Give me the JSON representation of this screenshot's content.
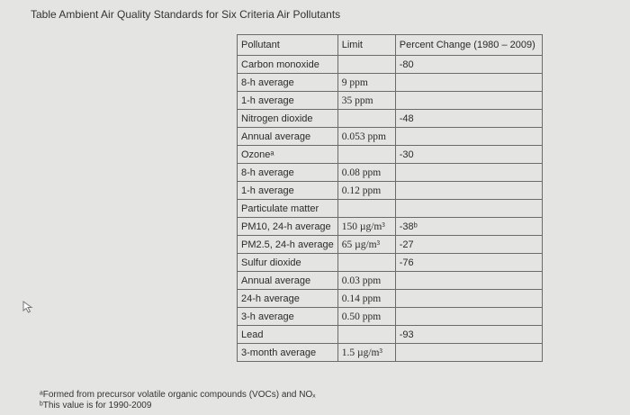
{
  "title": "Table Ambient Air Quality Standards for Six Criteria Air Pollutants",
  "table": {
    "header": [
      "Pollutant",
      "Limit",
      "Percent Change (1980 – 2009)"
    ],
    "rows": [
      [
        "Carbon monoxide",
        "",
        "-80"
      ],
      [
        "8-h average",
        "9 ppm",
        ""
      ],
      [
        "1-h average",
        "35 ppm",
        ""
      ],
      [
        "Nitrogen dioxide",
        "",
        "-48"
      ],
      [
        "Annual average",
        "0.053 ppm",
        ""
      ],
      [
        "Ozoneᵃ",
        "",
        "-30"
      ],
      [
        "8-h average",
        "0.08 ppm",
        ""
      ],
      [
        "1-h average",
        "0.12 ppm",
        ""
      ],
      [
        "Particulate matter",
        "",
        ""
      ],
      [
        "PM10, 24-h average",
        "150 µg/m³",
        "-38ᵇ"
      ],
      [
        "PM2.5, 24-h average",
        "65 µg/m³",
        "-27"
      ],
      [
        "Sulfur dioxide",
        "",
        "-76"
      ],
      [
        "Annual average",
        "0.03 ppm",
        ""
      ],
      [
        "24-h average",
        "0.14 ppm",
        ""
      ],
      [
        "3-h average",
        "0.50 ppm",
        ""
      ],
      [
        "Lead",
        "",
        "-93"
      ],
      [
        "3-month average",
        "1.5 µg/m³",
        ""
      ]
    ]
  },
  "footnotes": [
    "ᵃFormed from precursor volatile organic compounds (VOCs) and NOₓ",
    "ᵇThis value is for 1990-2009"
  ]
}
